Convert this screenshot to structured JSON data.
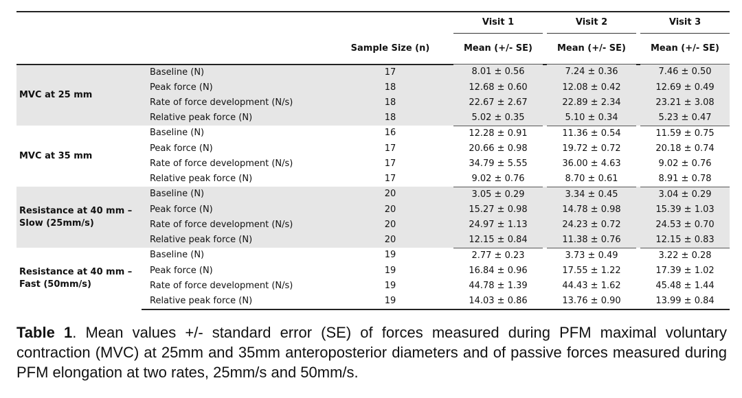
{
  "table": {
    "header": {
      "visit_labels": [
        "Visit 1",
        "Visit 2",
        "Visit 3"
      ],
      "sample_size": "Sample Size (n)",
      "mean_label": "Mean (+/- SE)"
    },
    "groups": [
      {
        "label": "MVC at 25 mm",
        "shaded": true,
        "rows": [
          {
            "measure": "Baseline (N)",
            "n": "17",
            "v1": "8.01 ± 0.56",
            "v2": "7.24 ± 0.36",
            "v3": "7.46 ± 0.50"
          },
          {
            "measure": "Peak force (N)",
            "n": "18",
            "v1": "12.68 ± 0.60",
            "v2": "12.08 ± 0.42",
            "v3": "12.69 ± 0.49"
          },
          {
            "measure": "Rate of force development (N/s)",
            "n": "18",
            "v1": "22.67 ± 2.67",
            "v2": "22.89 ± 2.34",
            "v3": "23.21 ± 3.08"
          },
          {
            "measure": "Relative peak force (N)",
            "n": "18",
            "v1": "5.02 ± 0.35",
            "v2": "5.10 ± 0.34",
            "v3": "5.23 ± 0.47"
          }
        ]
      },
      {
        "label": "MVC at 35 mm",
        "shaded": false,
        "rows": [
          {
            "measure": "Baseline (N)",
            "n": "16",
            "v1": "12.28 ± 0.91",
            "v2": "11.36 ± 0.54",
            "v3": "11.59 ± 0.75"
          },
          {
            "measure": "Peak force (N)",
            "n": "17",
            "v1": "20.66 ± 0.98",
            "v2": "19.72 ± 0.72",
            "v3": "20.18 ± 0.74"
          },
          {
            "measure": "Rate of force development (N/s)",
            "n": "17",
            "v1": "34.79 ± 5.55",
            "v2": "36.00 ± 4.63",
            "v3": "9.02 ± 0.76"
          },
          {
            "measure": "Relative peak force (N)",
            "n": "17",
            "v1": "9.02 ± 0.76",
            "v2": "8.70 ± 0.61",
            "v3": "8.91 ± 0.78"
          }
        ]
      },
      {
        "label": "Resistance at 40 mm – Slow (25mm/s)",
        "shaded": true,
        "rows": [
          {
            "measure": "Baseline (N)",
            "n": "20",
            "v1": "3.05 ± 0.29",
            "v2": "3.34 ± 0.45",
            "v3": "3.04 ± 0.29"
          },
          {
            "measure": "Peak force (N)",
            "n": "20",
            "v1": "15.27 ± 0.98",
            "v2": "14.78 ± 0.98",
            "v3": "15.39 ± 1.03"
          },
          {
            "measure": "Rate of force development (N/s)",
            "n": "20",
            "v1": "24.97 ± 1.13",
            "v2": "24.23 ± 0.72",
            "v3": "24.53 ± 0.70"
          },
          {
            "measure": "Relative peak force (N)",
            "n": "20",
            "v1": "12.15 ± 0.84",
            "v2": "11.38 ± 0.76",
            "v3": "12.15 ± 0.83"
          }
        ]
      },
      {
        "label": "Resistance at 40 mm – Fast (50mm/s)",
        "shaded": false,
        "rows": [
          {
            "measure": "Baseline (N)",
            "n": "19",
            "v1": "2.77 ± 0.23",
            "v2": "3.73 ± 0.49",
            "v3": "3.22 ± 0.28"
          },
          {
            "measure": "Peak force (N)",
            "n": "19",
            "v1": "16.84 ± 0.96",
            "v2": "17.55 ± 1.22",
            "v3": "17.39 ± 1.02"
          },
          {
            "measure": "Rate of force development (N/s)",
            "n": "19",
            "v1": "44.78 ± 1.39",
            "v2": "44.43 ± 1.62",
            "v3": "45.48 ± 1.44"
          },
          {
            "measure": "Relative peak force (N)",
            "n": "19",
            "v1": "14.03 ± 0.86",
            "v2": "13.76 ± 0.90",
            "v3": "13.99 ± 0.84"
          }
        ]
      }
    ]
  },
  "caption": {
    "label": "Table 1",
    "text": ". Mean values +/- standard error (SE) of forces measured during PFM maximal voluntary contraction (MVC) at 25mm and 35mm anteroposterior diameters and of passive forces measured during PFM elongation at two rates, 25mm/s and 50mm/s."
  },
  "colors": {
    "shade": "#e6e6e6",
    "rule": "#222222"
  }
}
